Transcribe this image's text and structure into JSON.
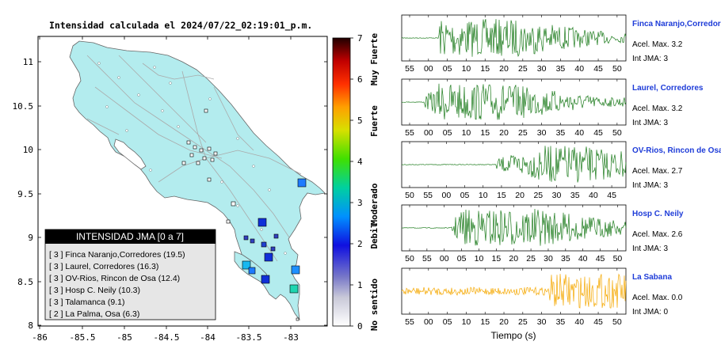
{
  "map": {
    "title": "Intensidad calculada el 2024/07/22_02:19:01_p.m.",
    "x_ticks": [
      "-86",
      "-85.5",
      "-85",
      "-84.5",
      "-84",
      "-83.5",
      "-83"
    ],
    "y_ticks": [
      "11",
      "10.5",
      "10",
      "9.5",
      "9",
      "8.5",
      "8"
    ],
    "legend_title": "INTENSIDAD JMA [0 a 7]",
    "legend_rows": [
      "[ 3 ]  Finca Naranjo,Corredores (19.5)",
      "[ 3 ]  Laurel, Corredores (16.3)",
      "[ 3 ]  OV-Rios, Rincon de Osa (12.4)",
      "[ 3 ]  Hosp C. Neily (10.3)",
      "[ 3 ]  Talamanca (9.1)",
      "[ 2 ]  La Palma, Osa (6.3)"
    ]
  },
  "colorbar": {
    "ticks": [
      "7",
      "6",
      "5",
      "4",
      "3",
      "2",
      "1",
      "0"
    ],
    "labels": [
      "Muy Fuerte",
      "Fuerte",
      "Moderado",
      "Debil",
      "No sentido"
    ]
  },
  "traces": [
    {
      "name": "Finca Naranjo,Corredor",
      "accel": "Acel. Max. 3.2",
      "int": "Int JMA: 3",
      "ticks": [
        "55",
        "00",
        "05",
        "10",
        "15",
        "20",
        "25",
        "30",
        "35",
        "40",
        "45",
        "50"
      ],
      "color": "#1a7a1a"
    },
    {
      "name": "Laurel, Corredores",
      "accel": "Acel. Max. 3.2",
      "int": "Int JMA: 3",
      "ticks": [
        "55",
        "00",
        "05",
        "10",
        "15",
        "20",
        "25",
        "30",
        "35",
        "40",
        "45",
        "50"
      ],
      "color": "#1a7a1a"
    },
    {
      "name": "OV-Rios, Rincon de Osa",
      "accel": "Acel. Max. 2.7",
      "int": "Int JMA: 3",
      "ticks": [
        "50",
        "55",
        "00",
        "05",
        "10",
        "15",
        "20",
        "25",
        "30",
        "35",
        "40",
        "45"
      ],
      "color": "#1a7a1a"
    },
    {
      "name": "Hosp C. Neily",
      "accel": "Acel. Max. 2.6",
      "int": "Int JMA: 3",
      "ticks": [
        "50",
        "55",
        "00",
        "05",
        "10",
        "15",
        "20",
        "25",
        "30",
        "35",
        "40",
        "45",
        "50"
      ],
      "color": "#1a7a1a"
    },
    {
      "name": "La Sabana",
      "accel": "Acel. Max. 0.0",
      "int": "Int JMA: 0",
      "ticks": [
        "55",
        "00",
        "05",
        "10",
        "15",
        "20",
        "25",
        "30",
        "35",
        "40",
        "45",
        "50"
      ],
      "color": "#f5a800"
    }
  ],
  "xlabel": "Tiempo (s)"
}
